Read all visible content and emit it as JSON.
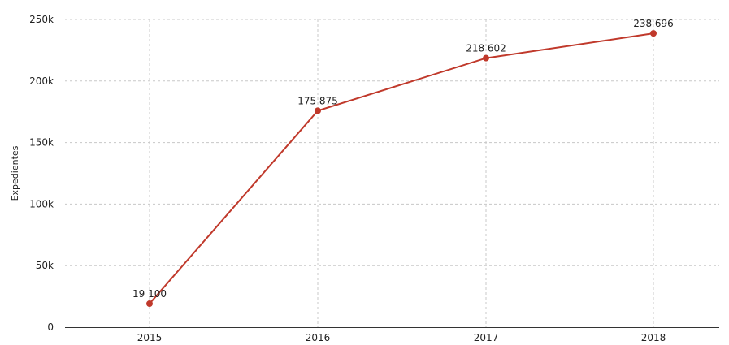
{
  "chart_data": {
    "type": "line",
    "title": "",
    "xlabel": "",
    "ylabel": "Expedientes",
    "x": [
      "2015",
      "2016",
      "2017",
      "2018"
    ],
    "series": [
      {
        "values": [
          19100,
          175875,
          218602,
          238696
        ],
        "data_labels": [
          "19 100",
          "175 875",
          "218 602",
          "238 696"
        ],
        "color": "#c0392b"
      }
    ],
    "ylim": [
      0,
      250000
    ],
    "y_ticks": [
      0,
      50000,
      100000,
      150000,
      200000,
      250000
    ],
    "y_tick_labels": [
      "0",
      "50k",
      "100k",
      "150k",
      "200k",
      "250k"
    ],
    "grid": true,
    "legend": "none"
  }
}
